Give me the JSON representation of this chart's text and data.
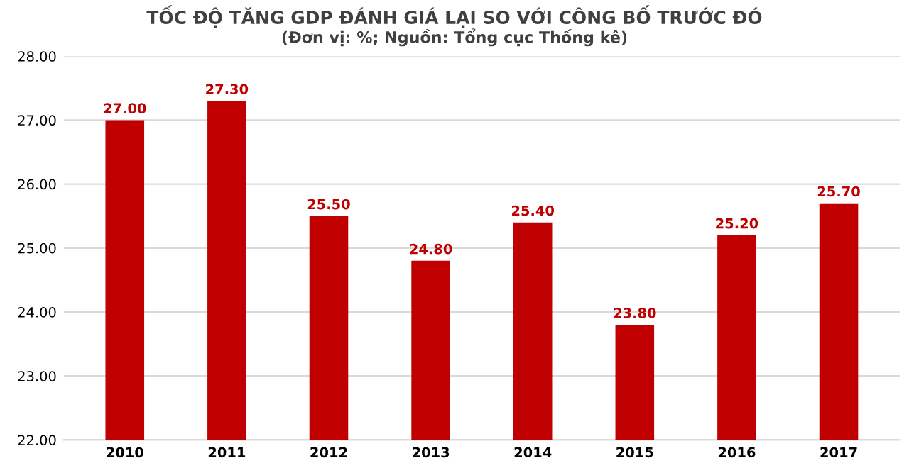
{
  "chart_data": {
    "type": "bar",
    "title": "TỐC ĐỘ TĂNG GDP ĐÁNH GIÁ LẠI SO VỚI CÔNG BỐ TRƯỚC ĐÓ",
    "subtitle": "(Đơn vị: %; Nguồn: Tổng cục Thống kê)",
    "categories": [
      "2010",
      "2011",
      "2012",
      "2013",
      "2014",
      "2015",
      "2016",
      "2017"
    ],
    "values": [
      27.0,
      27.3,
      25.5,
      24.8,
      25.4,
      23.8,
      25.2,
      25.7
    ],
    "value_labels": [
      "27.00",
      "27.30",
      "25.50",
      "24.80",
      "25.40",
      "23.80",
      "25.20",
      "25.70"
    ],
    "color": "#c00000",
    "ylim": [
      22,
      28
    ],
    "yticks": [
      {
        "value": 22,
        "label": "22.00"
      },
      {
        "value": 23,
        "label": "23.00"
      },
      {
        "value": 24,
        "label": "24.00"
      },
      {
        "value": 25,
        "label": "25.00"
      },
      {
        "value": 26,
        "label": "26.00"
      },
      {
        "value": 27,
        "label": "27.00"
      },
      {
        "value": 28,
        "label": "28.00"
      }
    ],
    "grid": "y"
  }
}
